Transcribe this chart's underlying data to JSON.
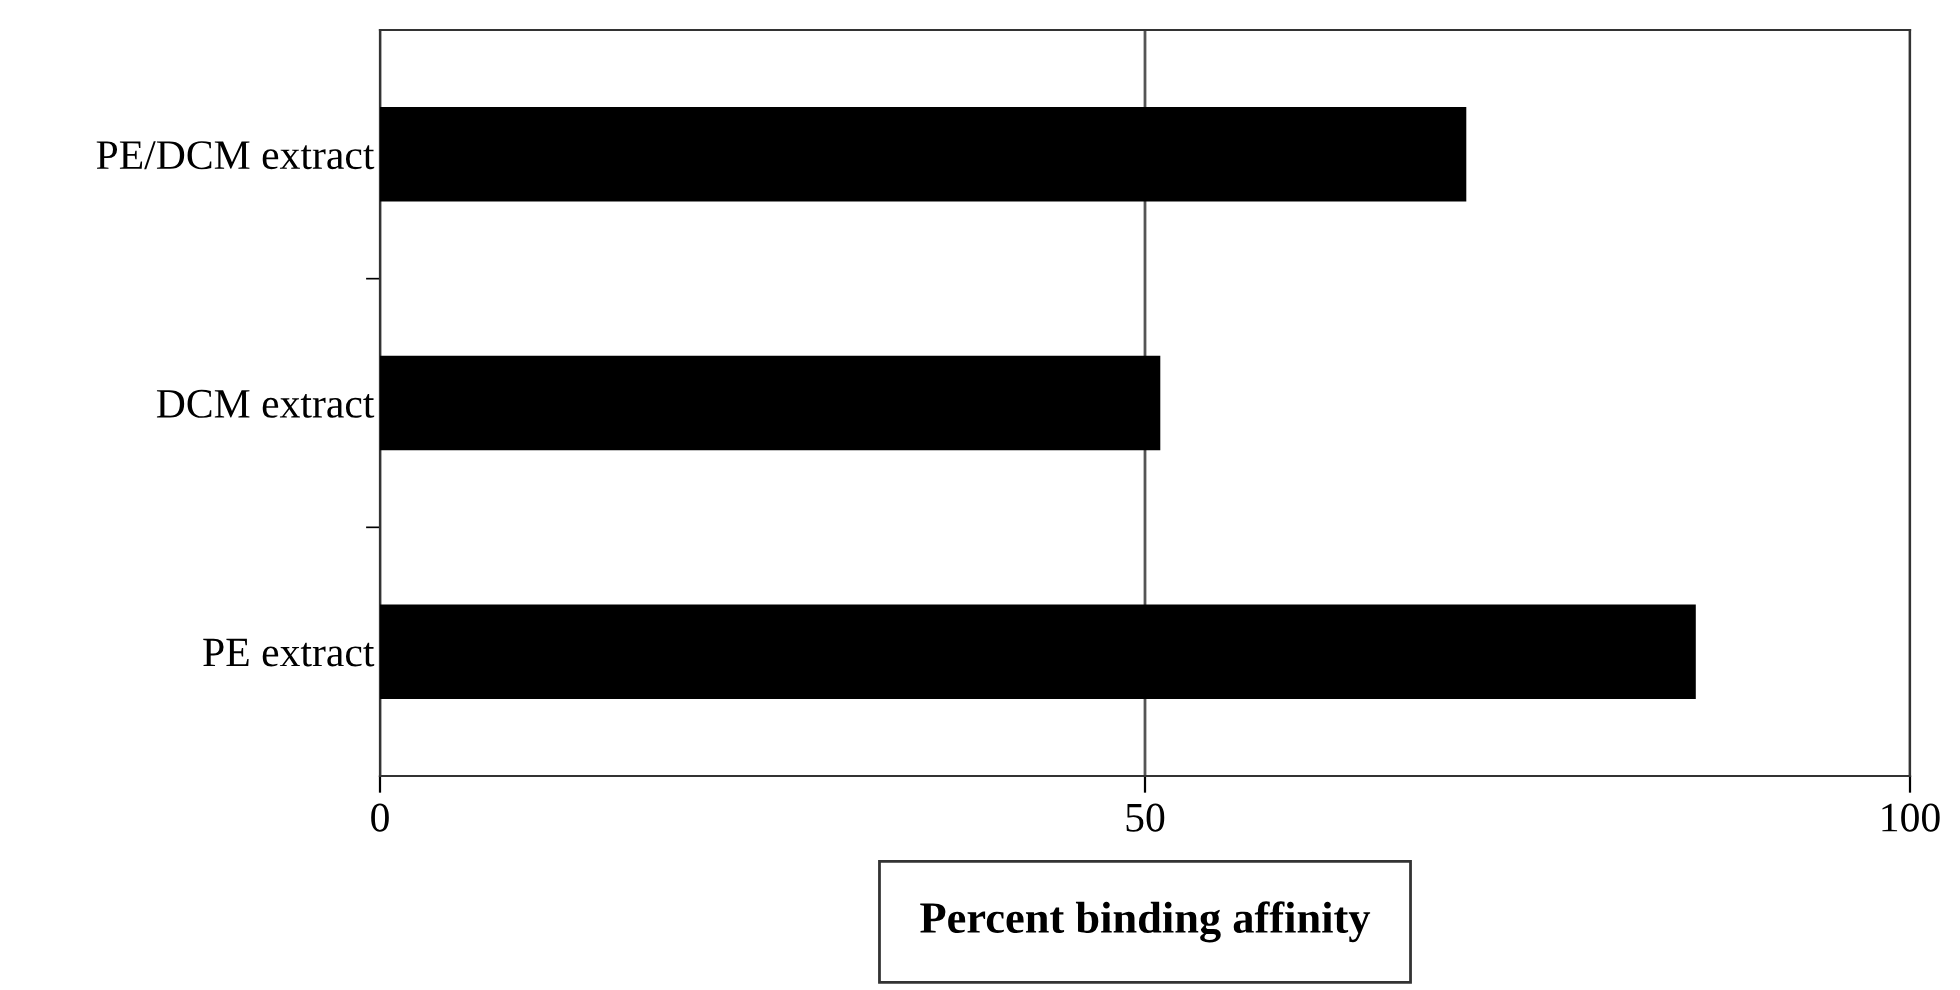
{
  "chart_data": {
    "type": "bar",
    "orientation": "horizontal",
    "xlabel": "Percent binding affinity",
    "categories": [
      "PE/DCM extract",
      "DCM extract",
      "PE extract"
    ],
    "values": [
      71,
      51,
      86
    ],
    "color": "#000000",
    "xlim": [
      0,
      100
    ],
    "xticks": [
      0,
      50,
      100
    ],
    "grid": "x"
  }
}
